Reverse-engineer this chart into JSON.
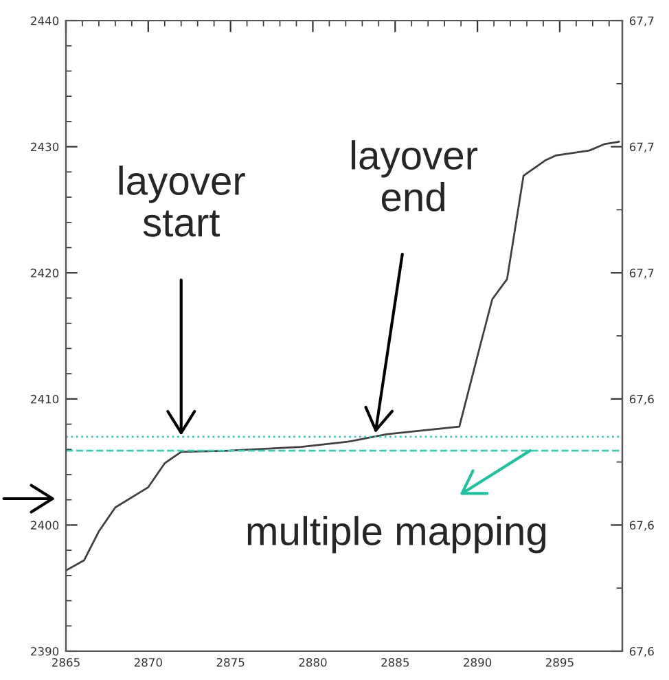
{
  "chart_data": {
    "type": "line",
    "x": [
      2865,
      2866.1,
      2867.0,
      2868.0,
      2870.0,
      2871.0,
      2872.0,
      2874.9,
      2879.3,
      2882.1,
      2884.5,
      2888.9,
      2890.2,
      2890.9,
      2891.8,
      2892.8,
      2894.1,
      2894.75,
      2896.8,
      2897.7,
      2898.6
    ],
    "series": [
      {
        "color": "#404040",
        "values": [
          2396.4,
          2397.2,
          2399.5,
          2401.4,
          2403.0,
          2404.9,
          2405.8,
          2405.9,
          2406.2,
          2406.6,
          2407.2,
          2407.8,
          2414.4,
          2417.9,
          2419.5,
          2427.7,
          2428.9,
          2429.3,
          2429.7,
          2430.2,
          2430.4
        ]
      }
    ],
    "xlim": [
      2865,
      2898.8
    ],
    "xticks": [
      2865,
      2870,
      2875,
      2880,
      2885,
      2890,
      2895
    ],
    "ylim": [
      2390,
      2440
    ],
    "yticks": [
      2390,
      2400,
      2410,
      2420,
      2430,
      2440
    ],
    "y2lim": [
      67.6,
      67.7
    ],
    "y2ticks": [
      {
        "value": 67.6,
        "label": "67,6"
      },
      {
        "value": 67.62,
        "label": "67,6"
      },
      {
        "value": 67.64,
        "label": "67,6"
      },
      {
        "value": 67.66,
        "label": "67,7"
      },
      {
        "value": 67.68,
        "label": "67,7"
      },
      {
        "value": 67.7,
        "label": "67,7"
      }
    ],
    "ref_lines": [
      {
        "axis": "y",
        "value": 2407.0,
        "color": "#40c8b0",
        "line_style": "dotted"
      },
      {
        "axis": "y",
        "value": 2405.9,
        "color": "#40c8b0",
        "line_style": "dashed"
      }
    ],
    "annotations": [
      {
        "text": "layover\nstart",
        "x": 2872.0,
        "y": 2407.1
      },
      {
        "text": "layover\nend",
        "x": 2883.8,
        "y": 2407.3
      },
      {
        "text": "multiple mapping",
        "x": 2893.2,
        "y": 2405.9
      }
    ],
    "grid": false,
    "marker": "none",
    "line_style": "solid"
  }
}
